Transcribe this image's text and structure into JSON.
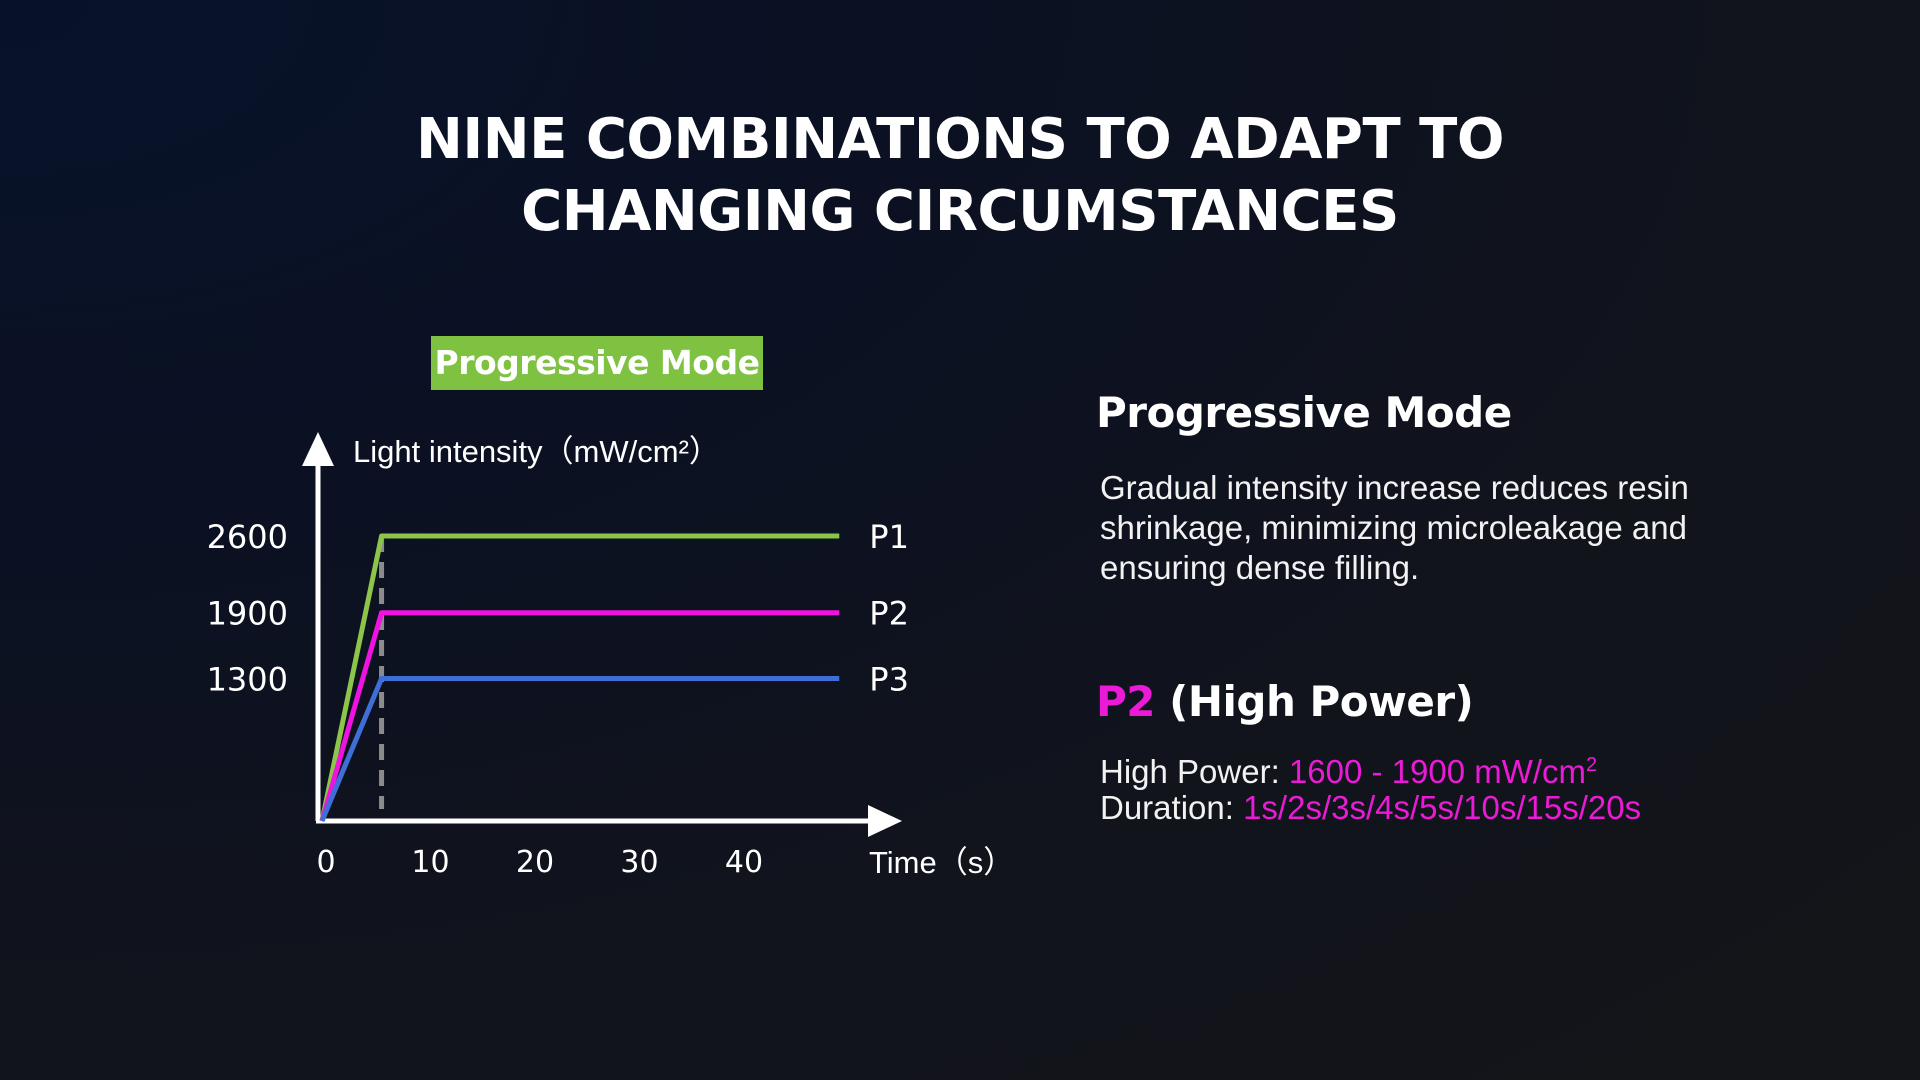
{
  "header": {
    "title_line1": "NINE COMBINATIONS TO ADAPT TO",
    "title_line2": "CHANGING CIRCUMSTANCES"
  },
  "badge": {
    "label": "Progressive Mode"
  },
  "chart_data": {
    "type": "line",
    "title": "",
    "ylabel": "Light intensity（mW/cm²）",
    "xlabel": "Time（s）",
    "x_ticks": [
      0,
      10,
      20,
      30,
      40
    ],
    "y_ticks": [
      1300,
      1900,
      2600
    ],
    "xlim": [
      0,
      58
    ],
    "ylim": [
      0,
      2800
    ],
    "ramp_end_marker_x": 5.7,
    "grid": false,
    "colors": {
      "axis": "#ffffff",
      "marker": "#8c8c8c"
    },
    "series": [
      {
        "name": "P1",
        "color": "#8cc54a",
        "x": [
          0,
          5.7,
          49.5
        ],
        "y": [
          0,
          2600,
          2600
        ]
      },
      {
        "name": "P2",
        "color": "#f012e0",
        "x": [
          0,
          5.7,
          49.5
        ],
        "y": [
          0,
          1900,
          1900
        ]
      },
      {
        "name": "P3",
        "color": "#3f6fd6",
        "x": [
          0,
          5.7,
          49.5
        ],
        "y": [
          0,
          1300,
          1300
        ]
      }
    ]
  },
  "side": {
    "heading": "Progressive Mode",
    "description": "Gradual intensity increase reduces resin shrinkage, minimizing microleakage and ensuring dense filling.",
    "power_title_highlight": "P2",
    "power_title_rest": " (High Power)",
    "power_label": "High Power: ",
    "power_value": "1600 - 1900 mW/cm",
    "power_unit_sup": "2",
    "duration_label": "Duration: ",
    "duration_value": "1s/2s/3s/4s/5s/10s/15s/20s"
  },
  "colors": {
    "accent_green": "#7fc242",
    "accent_magenta": "#ea1ad6",
    "background": "#0b1122"
  }
}
